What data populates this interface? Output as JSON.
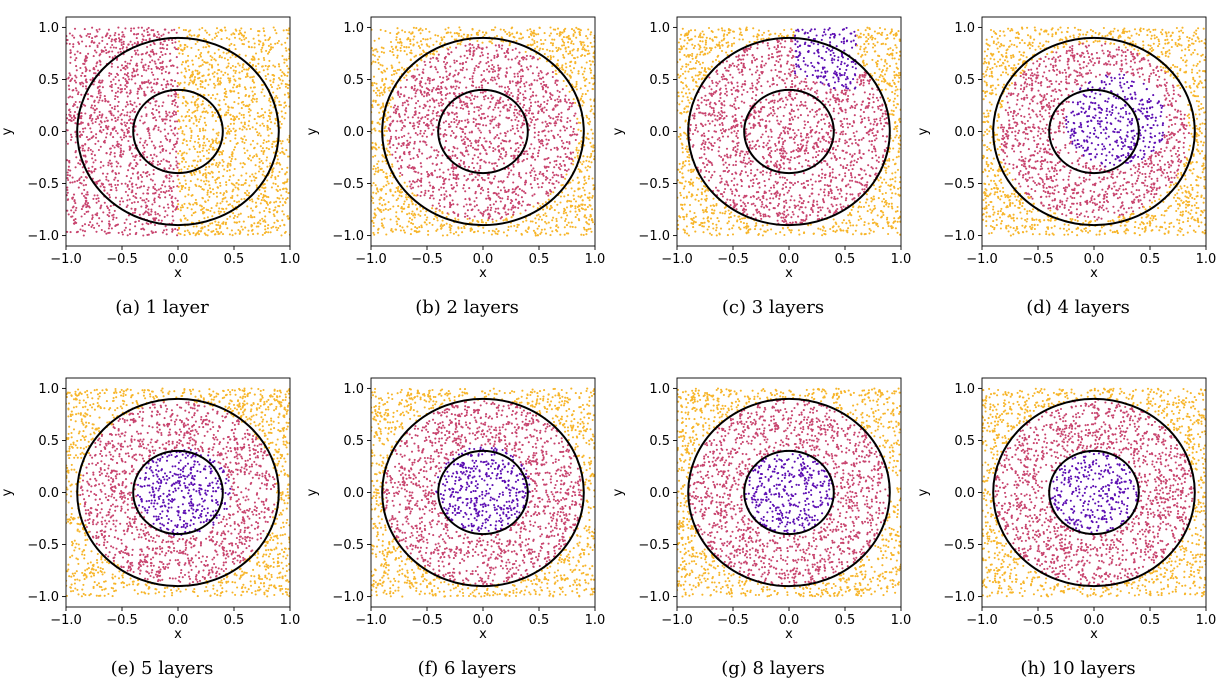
{
  "colors": {
    "outer": "#f7b52a",
    "middle": "#c8446e",
    "inner": "#5d0fb3",
    "circle": "#000000"
  },
  "chart_data": [
    {
      "id": "a",
      "type": "scatter",
      "caption": "(a)  1 layer",
      "xlabel": "x",
      "ylabel": "y",
      "xlim": [
        -1.0,
        1.0
      ],
      "ylim": [
        -1.1,
        1.1
      ],
      "xticks": [
        "−1.0",
        "−0.5",
        "0.0",
        "0.5",
        "1.0"
      ],
      "yticks": [
        "−1.0",
        "−0.5",
        "0.0",
        "0.5",
        "1.0"
      ],
      "circle_radii": [
        0.4,
        0.9
      ],
      "classification": {
        "rule": "halfplane",
        "x_boundary": 0.0,
        "left": "middle",
        "right": "outer"
      }
    },
    {
      "id": "b",
      "type": "scatter",
      "caption": "(b)  2 layers",
      "xlabel": "x",
      "ylabel": "y",
      "xlim": [
        -1.0,
        1.0
      ],
      "ylim": [
        -1.1,
        1.1
      ],
      "xticks": [
        "−1.0",
        "−0.5",
        "0.0",
        "0.5",
        "1.0"
      ],
      "yticks": [
        "−1.0",
        "−0.5",
        "0.0",
        "0.5",
        "1.0"
      ],
      "circle_radii": [
        0.4,
        0.9
      ],
      "classification": {
        "rule": "disc",
        "radius": 0.85,
        "inside": "middle",
        "outside": "outer"
      }
    },
    {
      "id": "c",
      "type": "scatter",
      "caption": "(c)  3 layers",
      "xlabel": "x",
      "ylabel": "y",
      "xlim": [
        -1.0,
        1.0
      ],
      "ylim": [
        -1.1,
        1.1
      ],
      "xticks": [
        "−1.0",
        "−0.5",
        "0.0",
        "0.5",
        "1.0"
      ],
      "yticks": [
        "−1.0",
        "−0.5",
        "0.0",
        "0.5",
        "1.0"
      ],
      "circle_radii": [
        0.4,
        0.9
      ],
      "classification": {
        "rule": "disc_with_patch",
        "radius": 0.9,
        "inside": "middle",
        "outside": "outer",
        "patch_x": [
          0.05,
          0.6
        ],
        "patch_y": [
          0.4,
          1.0
        ],
        "patch_class": "inner"
      }
    },
    {
      "id": "d",
      "type": "scatter",
      "caption": "(d)  4 layers",
      "xlabel": "x",
      "ylabel": "y",
      "xlim": [
        -1.0,
        1.0
      ],
      "ylim": [
        -1.1,
        1.1
      ],
      "xticks": [
        "−1.0",
        "−0.5",
        "0.0",
        "0.5",
        "1.0"
      ],
      "yticks": [
        "−1.0",
        "−0.5",
        "0.0",
        "0.5",
        "1.0"
      ],
      "circle_radii": [
        0.4,
        0.9
      ],
      "classification": {
        "rule": "rings_offset",
        "inner_center": [
          0.2,
          0.1
        ],
        "inner_radius": 0.45,
        "outer_radius": 0.85
      }
    },
    {
      "id": "e",
      "type": "scatter",
      "caption": "(e)  5 layers",
      "xlabel": "x",
      "ylabel": "y",
      "xlim": [
        -1.0,
        1.0
      ],
      "ylim": [
        -1.1,
        1.1
      ],
      "xticks": [
        "−1.0",
        "−0.5",
        "0.0",
        "0.5",
        "1.0"
      ],
      "yticks": [
        "−1.0",
        "−0.5",
        "0.0",
        "0.5",
        "1.0"
      ],
      "circle_radii": [
        0.4,
        0.9
      ],
      "classification": {
        "rule": "rings_offset",
        "inner_center": [
          0.05,
          0.0
        ],
        "inner_radius": 0.42,
        "outer_radius": 0.88
      }
    },
    {
      "id": "f",
      "type": "scatter",
      "caption": "(f)  6 layers",
      "xlabel": "x",
      "ylabel": "y",
      "xlim": [
        -1.0,
        1.0
      ],
      "ylim": [
        -1.1,
        1.1
      ],
      "xticks": [
        "−1.0",
        "−0.5",
        "0.0",
        "0.5",
        "1.0"
      ],
      "yticks": [
        "−1.0",
        "−0.5",
        "0.0",
        "0.5",
        "1.0"
      ],
      "circle_radii": [
        0.4,
        0.9
      ],
      "classification": {
        "rule": "rings_offset",
        "inner_center": [
          0.0,
          0.03
        ],
        "inner_radius": 0.42,
        "outer_radius": 0.89
      }
    },
    {
      "id": "g",
      "type": "scatter",
      "caption": "(g)  8 layers",
      "xlabel": "x",
      "ylabel": "y",
      "xlim": [
        -1.0,
        1.0
      ],
      "ylim": [
        -1.1,
        1.1
      ],
      "xticks": [
        "−1.0",
        "−0.5",
        "0.0",
        "0.5",
        "1.0"
      ],
      "yticks": [
        "−1.0",
        "−0.5",
        "0.0",
        "0.5",
        "1.0"
      ],
      "circle_radii": [
        0.4,
        0.9
      ],
      "classification": {
        "rule": "rings_offset",
        "inner_center": [
          0.0,
          0.0
        ],
        "inner_radius": 0.4,
        "outer_radius": 0.9
      }
    },
    {
      "id": "h",
      "type": "scatter",
      "caption": "(h)  10 layers",
      "xlabel": "x",
      "ylabel": "y",
      "xlim": [
        -1.0,
        1.0
      ],
      "ylim": [
        -1.1,
        1.1
      ],
      "xticks": [
        "−1.0",
        "−0.5",
        "0.0",
        "0.5",
        "1.0"
      ],
      "yticks": [
        "−1.0",
        "−0.5",
        "0.0",
        "0.5",
        "1.0"
      ],
      "circle_radii": [
        0.4,
        0.9
      ],
      "classification": {
        "rule": "rings_offset",
        "inner_center": [
          0.0,
          0.0
        ],
        "inner_radius": 0.4,
        "outer_radius": 0.9
      }
    }
  ]
}
